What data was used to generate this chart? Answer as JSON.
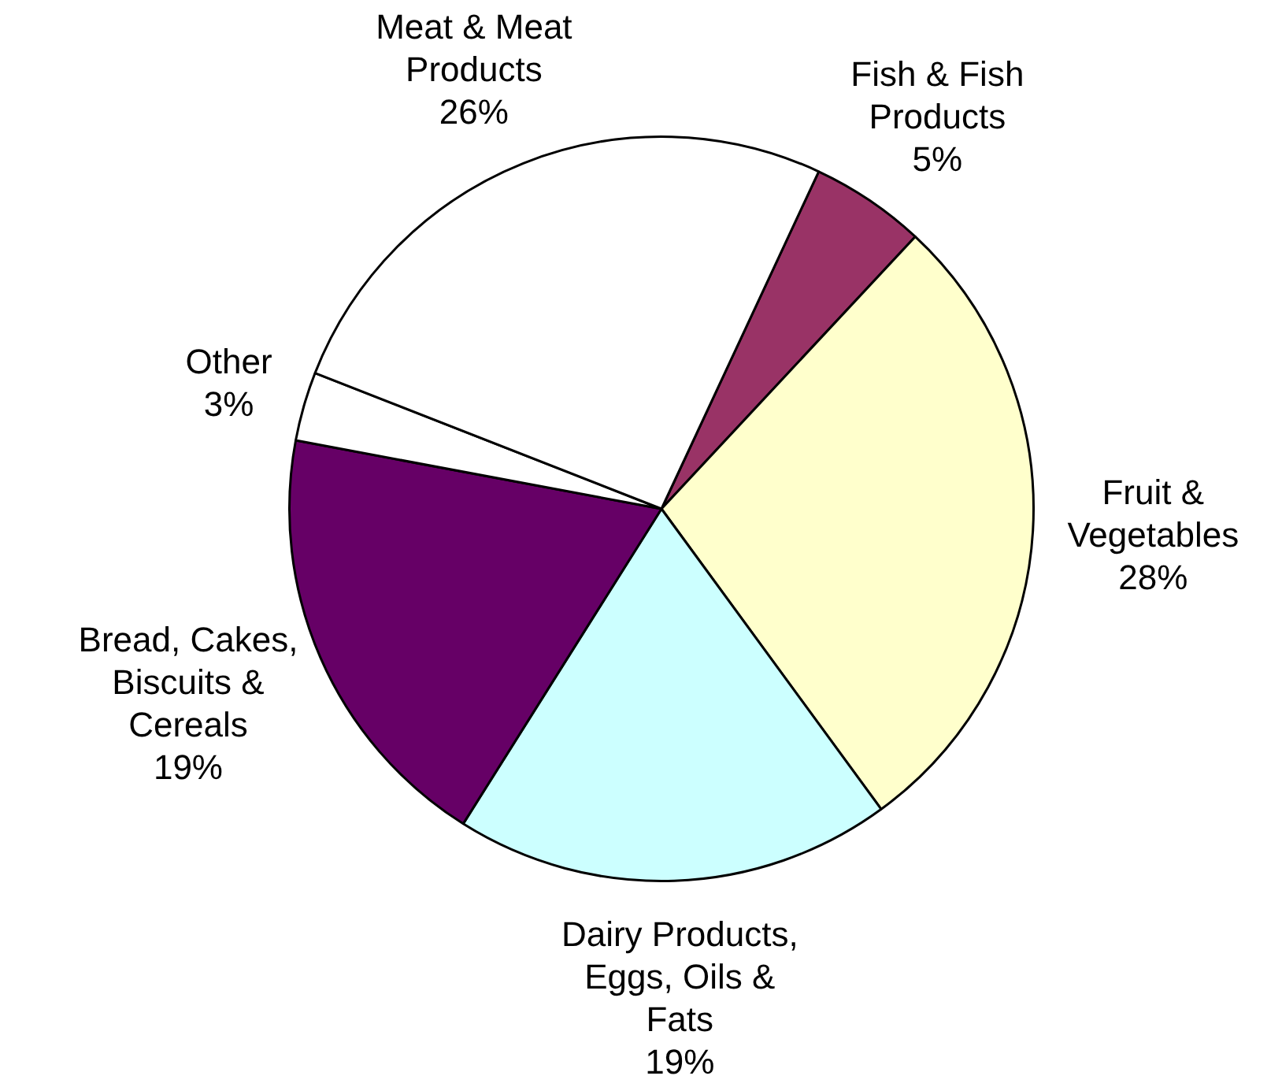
{
  "chart_data": {
    "type": "pie",
    "categories": [
      "Fish & Fish Products",
      "Fruit & Vegetables",
      "Dairy Products, Eggs, Oils & Fats",
      "Bread, Cakes, Biscuits & Cereals",
      "Other",
      "Meat & Meat Products"
    ],
    "values": [
      5,
      28,
      19,
      19,
      3,
      26
    ],
    "value_labels": [
      "5%",
      "28%",
      "19%",
      "19%",
      "3%",
      "26%"
    ],
    "colors": [
      "#993366",
      "#ffffcc",
      "#ccffff",
      "#660066",
      "#ffffff",
      "#ffffff"
    ],
    "legend": false
  }
}
